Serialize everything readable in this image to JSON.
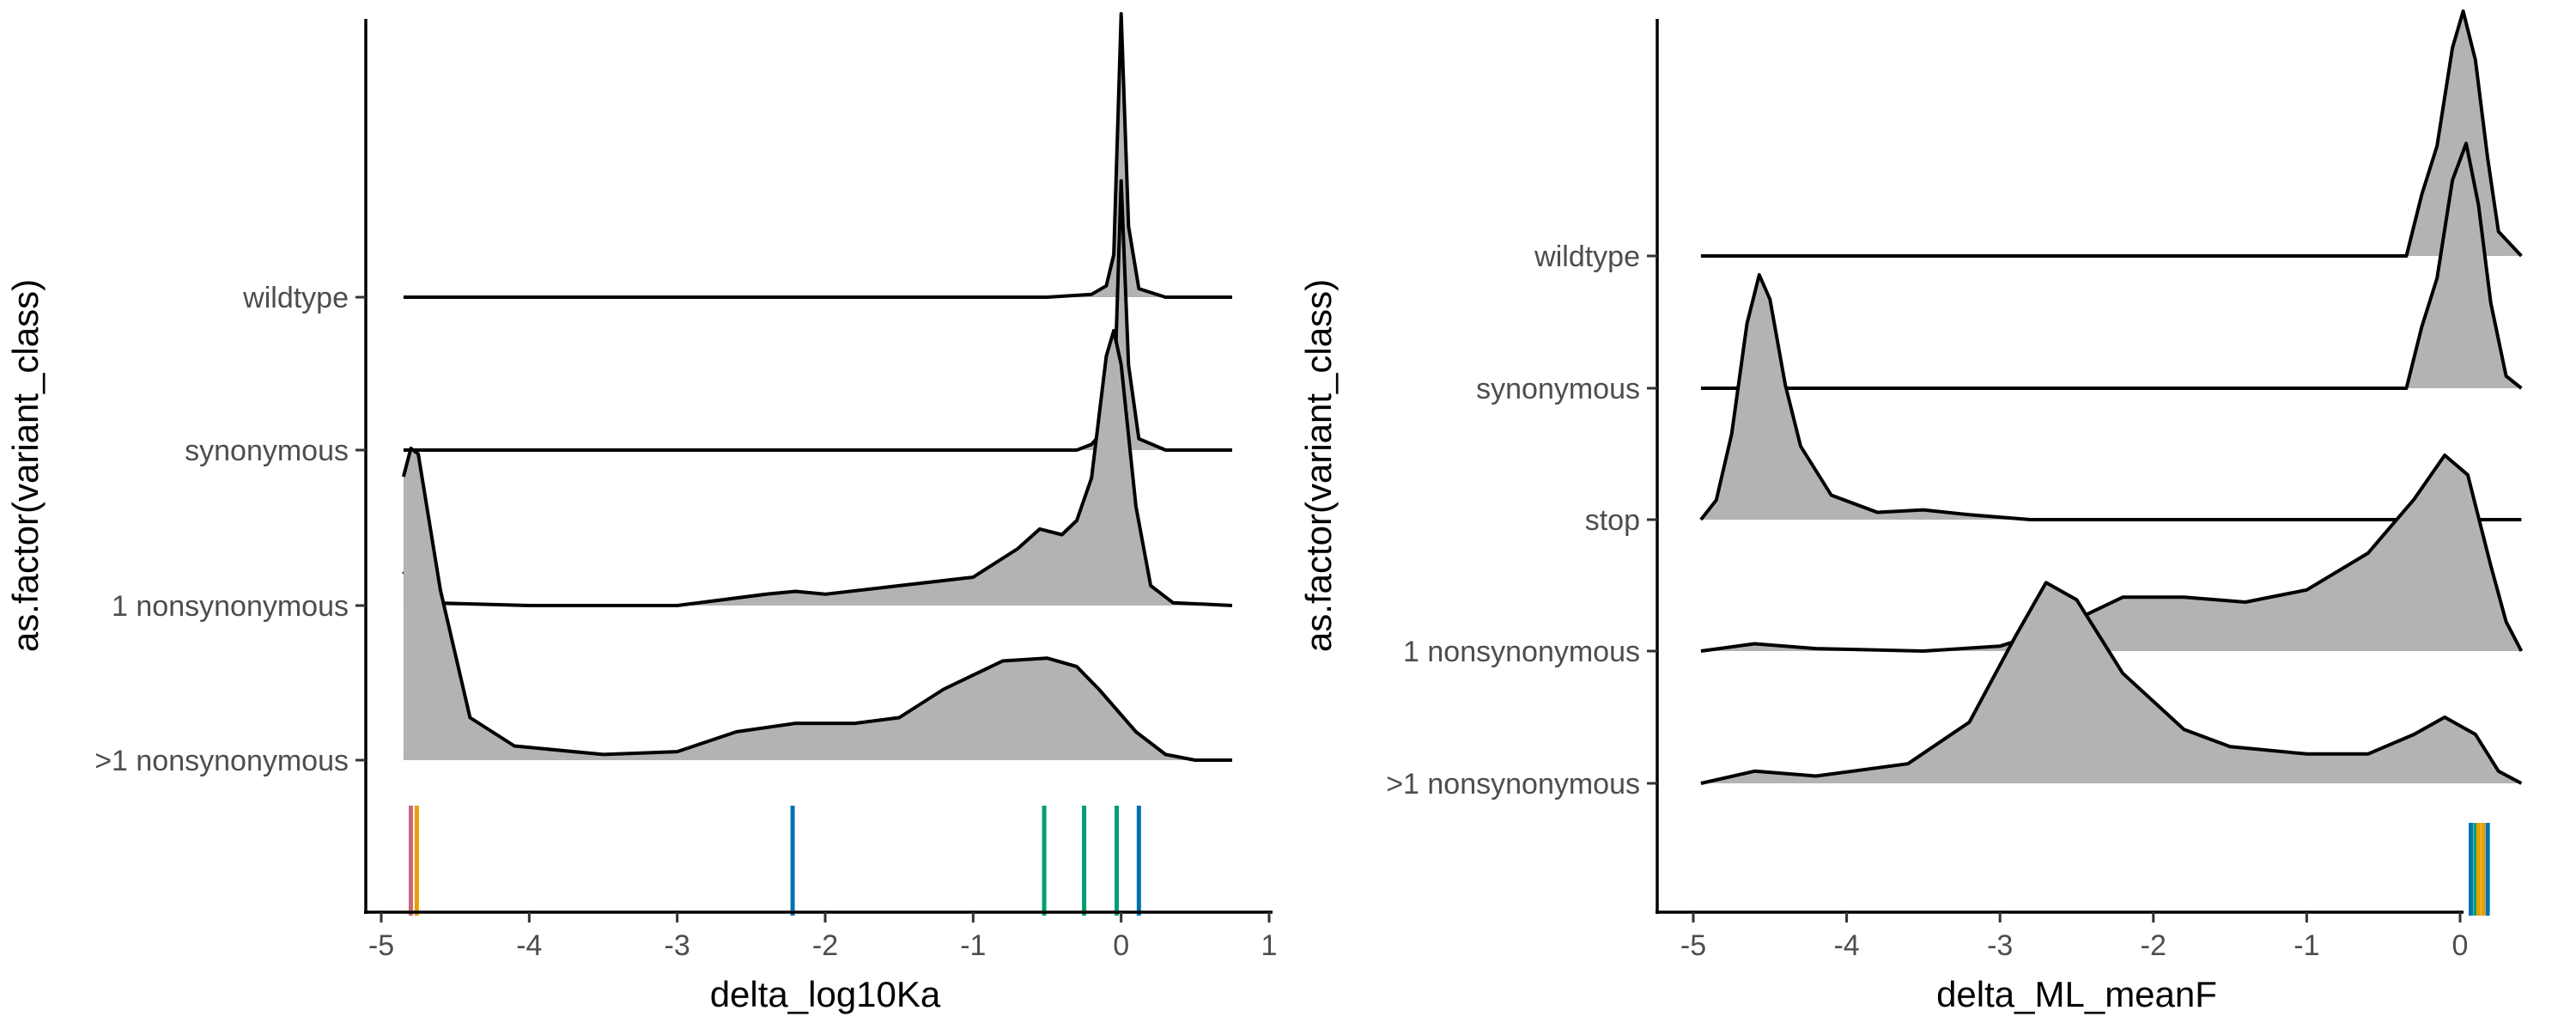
{
  "chart_data": [
    {
      "type": "ridgeline",
      "xlabel": "delta_log10Ka",
      "ylabel": "as.factor(variant_class)",
      "xlim": [
        -5.1,
        1.0
      ],
      "xticks": [
        -5,
        -4,
        -3,
        -2,
        -1,
        0,
        1
      ],
      "xtick_labels": [
        "-5",
        "-4",
        "-3",
        "-2",
        "-1",
        "0",
        "1"
      ],
      "grid": false,
      "legend": "none",
      "categories": [
        "wildtype",
        "synonymous",
        "1 nonsynonymous",
        ">1 nonsynonymous"
      ],
      "ridges": [
        {
          "category": "wildtype",
          "x_range": [
            -4.85,
            0.75
          ],
          "points": [
            [
              -4.85,
              0
            ],
            [
              -0.5,
              0
            ],
            [
              -0.2,
              0.01
            ],
            [
              -0.1,
              0.04
            ],
            [
              -0.05,
              0.15
            ],
            [
              0,
              1.0
            ],
            [
              0.05,
              0.25
            ],
            [
              0.12,
              0.03
            ],
            [
              0.3,
              0
            ],
            [
              0.75,
              0
            ]
          ]
        },
        {
          "category": "synonymous",
          "x_range": [
            -4.85,
            0.75
          ],
          "points": [
            [
              -4.85,
              0
            ],
            [
              -0.3,
              0
            ],
            [
              -0.2,
              0.02
            ],
            [
              -0.1,
              0.08
            ],
            [
              -0.04,
              0.3
            ],
            [
              0,
              0.95
            ],
            [
              0.05,
              0.3
            ],
            [
              0.12,
              0.04
            ],
            [
              0.3,
              0
            ],
            [
              0.75,
              0
            ]
          ]
        },
        {
          "category": "1 nonsynonymous",
          "x_range": [
            -4.85,
            0.75
          ],
          "points": [
            [
              -4.85,
              0.12
            ],
            [
              -4.7,
              0.01
            ],
            [
              -4.0,
              0
            ],
            [
              -3.0,
              0
            ],
            [
              -2.4,
              0.04
            ],
            [
              -2.2,
              0.05
            ],
            [
              -2.0,
              0.04
            ],
            [
              -1.5,
              0.07
            ],
            [
              -1.0,
              0.1
            ],
            [
              -0.7,
              0.2
            ],
            [
              -0.55,
              0.27
            ],
            [
              -0.4,
              0.25
            ],
            [
              -0.3,
              0.3
            ],
            [
              -0.2,
              0.45
            ],
            [
              -0.1,
              0.88
            ],
            [
              -0.05,
              0.97
            ],
            [
              0,
              0.85
            ],
            [
              0.1,
              0.35
            ],
            [
              0.2,
              0.07
            ],
            [
              0.35,
              0.01
            ],
            [
              0.75,
              0
            ]
          ]
        },
        {
          "category": ">1 nonsynonymous",
          "x_range": [
            -4.85,
            0.75
          ],
          "points": [
            [
              -4.85,
              1.0
            ],
            [
              -4.8,
              1.1
            ],
            [
              -4.75,
              1.08
            ],
            [
              -4.6,
              0.6
            ],
            [
              -4.4,
              0.15
            ],
            [
              -4.1,
              0.05
            ],
            [
              -3.5,
              0.02
            ],
            [
              -3.0,
              0.03
            ],
            [
              -2.6,
              0.1
            ],
            [
              -2.2,
              0.13
            ],
            [
              -1.8,
              0.13
            ],
            [
              -1.5,
              0.15
            ],
            [
              -1.2,
              0.25
            ],
            [
              -0.8,
              0.35
            ],
            [
              -0.5,
              0.36
            ],
            [
              -0.3,
              0.33
            ],
            [
              -0.15,
              0.25
            ],
            [
              0.1,
              0.1
            ],
            [
              0.3,
              0.02
            ],
            [
              0.5,
              0
            ],
            [
              0.75,
              0
            ]
          ]
        }
      ],
      "rug": [
        {
          "x": -4.8,
          "color": "#cc6677"
        },
        {
          "x": -4.76,
          "color": "#e69f00"
        },
        {
          "x": -2.22,
          "color": "#0072b2"
        },
        {
          "x": -0.52,
          "color": "#009e73"
        },
        {
          "x": -0.25,
          "color": "#009e73"
        },
        {
          "x": -0.03,
          "color": "#009e73"
        },
        {
          "x": 0.12,
          "color": "#0072b2"
        }
      ]
    },
    {
      "type": "ridgeline",
      "xlabel": "delta_ML_meanF",
      "ylabel": "as.factor(variant_class)",
      "xlim": [
        -5.2,
        0.7
      ],
      "xticks": [
        -5,
        -4,
        -3,
        -2,
        -1,
        0
      ],
      "xtick_labels": [
        "-5",
        "-4",
        "-3",
        "-2",
        "-1",
        "0"
      ],
      "grid": false,
      "legend": "none",
      "categories": [
        "wildtype",
        "synonymous",
        "stop",
        "1 nonsynonymous",
        ">1 nonsynonymous"
      ],
      "ridges": [
        {
          "category": "wildtype",
          "x_range": [
            -4.95,
            0.4
          ],
          "points": [
            [
              -4.95,
              0
            ],
            [
              -0.35,
              0
            ],
            [
              -0.25,
              0.25
            ],
            [
              -0.15,
              0.45
            ],
            [
              -0.05,
              0.85
            ],
            [
              0.02,
              1.0
            ],
            [
              0.1,
              0.8
            ],
            [
              0.18,
              0.4
            ],
            [
              0.25,
              0.1
            ],
            [
              0.4,
              0
            ]
          ]
        },
        {
          "category": "synonymous",
          "x_range": [
            -4.95,
            0.4
          ],
          "points": [
            [
              -4.95,
              0
            ],
            [
              -0.35,
              0
            ],
            [
              -0.25,
              0.25
            ],
            [
              -0.15,
              0.45
            ],
            [
              -0.05,
              0.85
            ],
            [
              0.04,
              1.0
            ],
            [
              0.12,
              0.75
            ],
            [
              0.2,
              0.35
            ],
            [
              0.3,
              0.05
            ],
            [
              0.4,
              0
            ]
          ]
        },
        {
          "category": "stop",
          "x_range": [
            -4.95,
            0.4
          ],
          "points": [
            [
              -4.95,
              0
            ],
            [
              -4.85,
              0.08
            ],
            [
              -4.75,
              0.35
            ],
            [
              -4.65,
              0.8
            ],
            [
              -4.57,
              1.0
            ],
            [
              -4.5,
              0.9
            ],
            [
              -4.4,
              0.55
            ],
            [
              -4.3,
              0.3
            ],
            [
              -4.1,
              0.1
            ],
            [
              -3.8,
              0.03
            ],
            [
              -3.5,
              0.04
            ],
            [
              -3.2,
              0.02
            ],
            [
              -2.8,
              0
            ],
            [
              0.4,
              0
            ]
          ]
        },
        {
          "category": "1 nonsynonymous",
          "x_range": [
            -4.95,
            0.4
          ],
          "points": [
            [
              -4.95,
              0
            ],
            [
              -4.6,
              0.03
            ],
            [
              -4.2,
              0.01
            ],
            [
              -3.5,
              0
            ],
            [
              -3.0,
              0.02
            ],
            [
              -2.6,
              0.1
            ],
            [
              -2.2,
              0.22
            ],
            [
              -1.8,
              0.22
            ],
            [
              -1.4,
              0.2
            ],
            [
              -1.0,
              0.25
            ],
            [
              -0.6,
              0.4
            ],
            [
              -0.3,
              0.62
            ],
            [
              -0.1,
              0.8
            ],
            [
              0.05,
              0.72
            ],
            [
              0.2,
              0.35
            ],
            [
              0.3,
              0.12
            ],
            [
              0.4,
              0
            ]
          ]
        },
        {
          "category": ">1 nonsynonymous",
          "x_range": [
            -4.95,
            0.4
          ],
          "points": [
            [
              -4.95,
              0
            ],
            [
              -4.6,
              0.05
            ],
            [
              -4.2,
              0.03
            ],
            [
              -3.6,
              0.08
            ],
            [
              -3.2,
              0.25
            ],
            [
              -2.9,
              0.6
            ],
            [
              -2.7,
              0.82
            ],
            [
              -2.5,
              0.75
            ],
            [
              -2.2,
              0.45
            ],
            [
              -1.8,
              0.22
            ],
            [
              -1.5,
              0.15
            ],
            [
              -1.0,
              0.12
            ],
            [
              -0.6,
              0.12
            ],
            [
              -0.3,
              0.2
            ],
            [
              -0.1,
              0.27
            ],
            [
              0.1,
              0.2
            ],
            [
              0.25,
              0.05
            ],
            [
              0.4,
              0
            ]
          ]
        }
      ],
      "rug": [
        {
          "x": 0.07,
          "color": "#0072b2"
        },
        {
          "x": 0.1,
          "color": "#009e73"
        },
        {
          "x": 0.12,
          "color": "#e69f00"
        },
        {
          "x": 0.15,
          "color": "#e69f00"
        },
        {
          "x": 0.18,
          "color": "#0072b2"
        }
      ]
    }
  ]
}
